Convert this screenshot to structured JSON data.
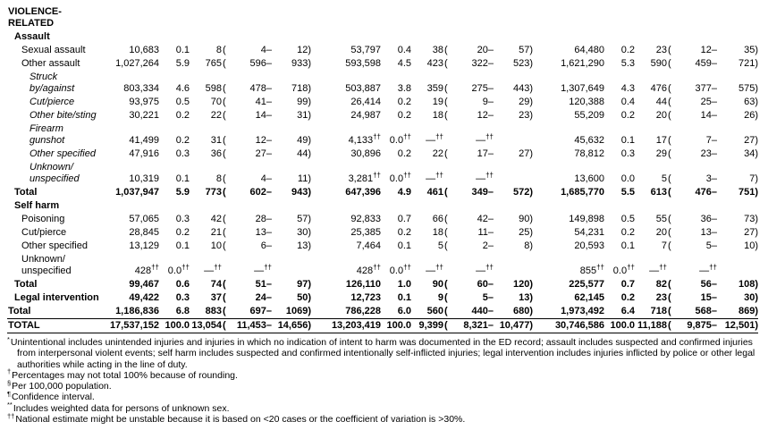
{
  "table": {
    "rows": [
      {
        "label": "VIOLENCE-RELATED",
        "cls": "l0 bold",
        "cells": null
      },
      {
        "label": "Assault",
        "cls": "l1 bold",
        "cells": null
      },
      {
        "label": "Sexual assault",
        "cls": "l2",
        "cells": [
          "10,683",
          "0.1",
          "8",
          "(",
          "4–",
          "12)",
          "53,797",
          "0.4",
          "38",
          "(",
          "20–",
          "57)",
          "64,480",
          "0.2",
          "23",
          "(",
          "12–",
          "35)"
        ]
      },
      {
        "label": "Other assault",
        "cls": "l2",
        "cells": [
          "1,027,264",
          "5.9",
          "765",
          "(",
          "596–",
          "933)",
          "593,598",
          "4.5",
          "423",
          "(",
          "322–",
          "523)",
          "1,621,290",
          "5.3",
          "590",
          "(",
          "459–",
          "721)"
        ]
      },
      {
        "label": "Struck\nby/against",
        "cls": "l3 italic",
        "cells": [
          "803,334",
          "4.6",
          "598",
          "(",
          "478–",
          "718)",
          "503,887",
          "3.8",
          "359",
          "(",
          "275–",
          "443)",
          "1,307,649",
          "4.3",
          "476",
          "(",
          "377–",
          "575)"
        ]
      },
      {
        "label": "Cut/pierce",
        "cls": "l3 italic",
        "cells": [
          "93,975",
          "0.5",
          "70",
          "(",
          "41–",
          "99)",
          "26,414",
          "0.2",
          "19",
          "(",
          "9–",
          "29)",
          "120,388",
          "0.4",
          "44",
          "(",
          "25–",
          "63)"
        ]
      },
      {
        "label": "Other bite/sting",
        "cls": "l3 italic",
        "cells": [
          "30,221",
          "0.2",
          "22",
          "(",
          "14–",
          "31)",
          "24,987",
          "0.2",
          "18",
          "(",
          "12–",
          "23)",
          "55,209",
          "0.2",
          "20",
          "(",
          "14–",
          "26)"
        ]
      },
      {
        "label": "Firearm gunshot",
        "cls": "l3 italic",
        "cells": [
          "41,499",
          "0.2",
          "31",
          "(",
          "12–",
          "49)",
          "4,133††",
          "0.0††",
          "—††",
          "",
          "—††",
          "",
          "45,632",
          "0.1",
          "17",
          "(",
          "7–",
          "27)"
        ]
      },
      {
        "label": "Other specified",
        "cls": "l3 italic",
        "cells": [
          "47,916",
          "0.3",
          "36",
          "(",
          "27–",
          "44)",
          "30,896",
          "0.2",
          "22",
          "(",
          "17–",
          "27)",
          "78,812",
          "0.3",
          "29",
          "(",
          "23–",
          "34)"
        ]
      },
      {
        "label": "Unknown/\nunspecified",
        "cls": "l3 italic",
        "cells": [
          "10,319",
          "0.1",
          "8",
          "(",
          "4–",
          "11)",
          "3,281††",
          "0.0††",
          "—††",
          "",
          "—††",
          "",
          "13,600",
          "0.0",
          "5",
          "(",
          "3–",
          "7)"
        ]
      },
      {
        "label": "Total",
        "cls": "l1 bold",
        "cells": [
          "1,037,947",
          "5.9",
          "773",
          "(",
          "602–",
          "943)",
          "647,396",
          "4.9",
          "461",
          "(",
          "349–",
          "572)",
          "1,685,770",
          "5.5",
          "613",
          "(",
          "476–",
          "751)"
        ]
      },
      {
        "label": "Self harm",
        "cls": "l1 bold",
        "cells": null
      },
      {
        "label": "Poisoning",
        "cls": "l2",
        "cells": [
          "57,065",
          "0.3",
          "42",
          "(",
          "28–",
          "57)",
          "92,833",
          "0.7",
          "66",
          "(",
          "42–",
          "90)",
          "149,898",
          "0.5",
          "55",
          "(",
          "36–",
          "73)"
        ]
      },
      {
        "label": "Cut/pierce",
        "cls": "l2",
        "cells": [
          "28,845",
          "0.2",
          "21",
          "(",
          "13–",
          "30)",
          "25,385",
          "0.2",
          "18",
          "(",
          "11–",
          "25)",
          "54,231",
          "0.2",
          "20",
          "(",
          "13–",
          "27)"
        ]
      },
      {
        "label": "Other specified",
        "cls": "l2",
        "cells": [
          "13,129",
          "0.1",
          "10",
          "(",
          "6–",
          "13)",
          "7,464",
          "0.1",
          "5",
          "(",
          "2–",
          "8)",
          "20,593",
          "0.1",
          "7",
          "(",
          "5–",
          "10)"
        ]
      },
      {
        "label": "Unknown/\nunspecified",
        "cls": "l2",
        "cells": [
          "428††",
          "0.0††",
          "—††",
          "",
          "—††",
          "",
          "428††",
          "0.0††",
          "—††",
          "",
          "—††",
          "",
          "855††",
          "0.0††",
          "—††",
          "",
          "—††",
          ""
        ]
      },
      {
        "label": "Total",
        "cls": "l1 bold",
        "cells": [
          "99,467",
          "0.6",
          "74",
          "(",
          "51–",
          "97)",
          "126,110",
          "1.0",
          "90",
          "(",
          "60–",
          "120)",
          "225,577",
          "0.7",
          "82",
          "(",
          "56–",
          "108)"
        ]
      },
      {
        "label": "Legal intervention",
        "cls": "l1 bold",
        "cells": [
          "49,422",
          "0.3",
          "37",
          "(",
          "24–",
          "50)",
          "12,723",
          "0.1",
          "9",
          "(",
          "5–",
          "13)",
          "62,145",
          "0.2",
          "23",
          "(",
          "15–",
          "30)"
        ]
      },
      {
        "label": "Total",
        "cls": "l0 bold",
        "cells": [
          "1,186,836",
          "6.8",
          "883",
          "(",
          "697–",
          "1069)",
          "786,228",
          "6.0",
          "560",
          "(",
          "440–",
          "680)",
          "1,973,492",
          "6.4",
          "718",
          "(",
          "568–",
          "869)"
        ]
      },
      {
        "label": "TOTAL",
        "cls": "l0 bold rule",
        "cells": [
          "17,537,152",
          "100.0",
          "13,054",
          "(",
          "11,453–",
          "14,656)",
          "13,203,419",
          "100.0",
          "9,399",
          "(",
          "8,321–",
          "10,477)",
          "30,746,586",
          "100.0",
          "11,188",
          "(",
          "9,875–",
          "12,501)"
        ]
      }
    ]
  },
  "footnotes": [
    {
      "marker": "*",
      "text": "Unintentional includes unintended injuries and injuries in which no indication of intent to harm was documented in the ED record; assault includes suspected and confirmed injuries from interpersonal violent events; self harm includes suspected and confirmed intentionally self-inflicted injuries; legal intervention includes injuries inflicted by police or other legal authorities while acting in the line of duty."
    },
    {
      "marker": "†",
      "text": "Percentages may not total 100% because of rounding."
    },
    {
      "marker": "§",
      "text": "Per 100,000 population."
    },
    {
      "marker": "¶",
      "text": "Confidence interval."
    },
    {
      "marker": "**",
      "text": "Includes weighted data for persons of unknown sex."
    },
    {
      "marker": "††",
      "text": "National estimate might be unstable because it is based on <20 cases or the coefficient of variation is >30%."
    }
  ]
}
